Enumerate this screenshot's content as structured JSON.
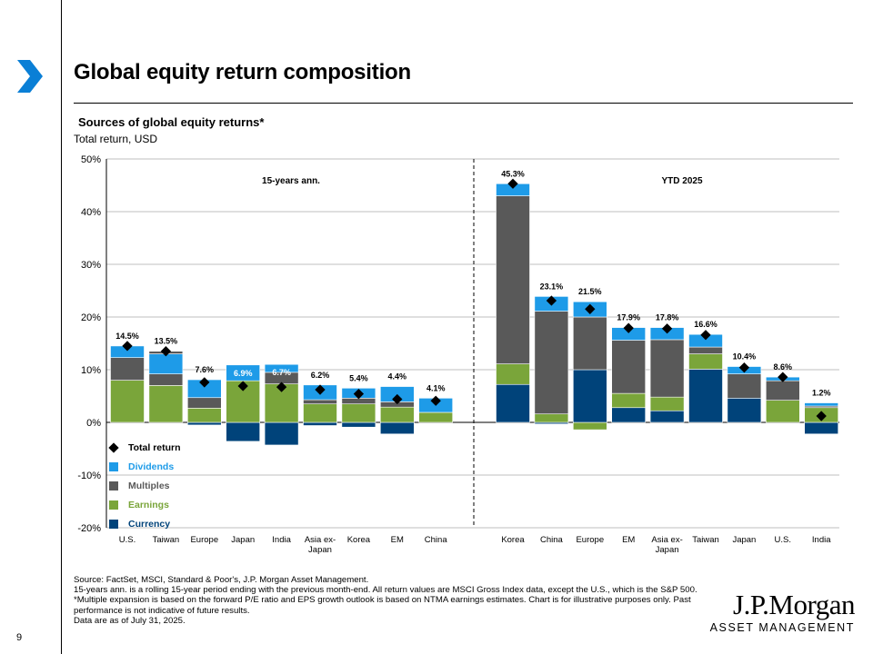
{
  "page": {
    "title": "Global equity return composition",
    "subtitle": "Sources of global equity returns*",
    "subtitle2": "Total return, USD",
    "page_number": "9",
    "footnotes": [
      "Source: FactSet, MSCI, Standard & Poor's, J.P. Morgan Asset Management.",
      "15-years ann. is a rolling 15-year period ending with the previous month-end. All return values are MSCI Gross Index data, except the U.S., which is the S&P 500. *Multiple expansion is based on the forward P/E ratio and EPS growth outlook is based on NTMA earnings estimates. Chart is for illustrative purposes only. Past performance is not indicative of future results.",
      "Data are as of July 31, 2025."
    ],
    "logo_name": "J.P.Morgan",
    "logo_sub": "ASSET MANAGEMENT"
  },
  "colors": {
    "dividends": "#1e9be8",
    "multiples": "#595959",
    "earnings": "#7aa53a",
    "currency": "#00437a",
    "accent": "#0a7fd6"
  },
  "legend": [
    {
      "key": "total",
      "label": "Total return"
    },
    {
      "key": "dividends",
      "label": "Dividends"
    },
    {
      "key": "multiples",
      "label": "Multiples"
    },
    {
      "key": "earnings",
      "label": "Earnings"
    },
    {
      "key": "currency",
      "label": "Currency"
    }
  ],
  "chart_data": {
    "type": "bar",
    "stacked": true,
    "ylim": [
      -20,
      50
    ],
    "yticks": [
      -20,
      -10,
      0,
      10,
      20,
      30,
      40,
      50
    ],
    "ytick_labels": [
      "-20%",
      "-10%",
      "0%",
      "10%",
      "20%",
      "30%",
      "40%",
      "50%"
    ],
    "groups": [
      {
        "label": "15-years ann.",
        "bars": [
          {
            "category": "U.S.",
            "currency": 0.0,
            "earnings": 8.0,
            "multiples": 4.3,
            "dividends": 2.2,
            "total": 14.5,
            "total_label": "14.5%",
            "label_on_bar": false
          },
          {
            "category": "Taiwan",
            "currency": 0.0,
            "earnings": 7.0,
            "multiples": 2.2,
            "dividends": 3.8,
            "extra_multiples": 0.5,
            "total": 13.5,
            "total_label": "13.5%",
            "label_on_bar": false
          },
          {
            "category": "Europe",
            "currency": -0.5,
            "earnings": 2.7,
            "multiples": 2.0,
            "dividends": 3.4,
            "total": 7.6,
            "total_label": "7.6%",
            "label_on_bar": false
          },
          {
            "category": "Japan",
            "currency": -3.6,
            "earnings": 7.9,
            "multiples": 0.0,
            "dividends": 3.0,
            "total": 6.9,
            "total_label": "6.9%",
            "label_on_bar": true
          },
          {
            "category": "India",
            "currency": -4.3,
            "earnings": 7.3,
            "multiples": 2.2,
            "dividends": 1.5,
            "total": 6.7,
            "total_label": "6.7%",
            "label_on_bar": true
          },
          {
            "category": "Asia ex-\nJapan",
            "currency": -0.6,
            "earnings": 3.5,
            "multiples": 0.8,
            "dividends": 2.8,
            "total": 6.2,
            "total_label": "6.2%",
            "label_on_bar": false
          },
          {
            "category": "Korea",
            "currency": -0.9,
            "earnings": 3.5,
            "multiples": 1.1,
            "dividends": 1.9,
            "total": 5.4,
            "total_label": "5.4%",
            "label_on_bar": false
          },
          {
            "category": "EM",
            "currency": -2.2,
            "earnings": 2.9,
            "multiples": 1.0,
            "dividends": 2.9,
            "total": 4.4,
            "total_label": "4.4%",
            "label_on_bar": false
          },
          {
            "category": "China",
            "currency": 0.0,
            "earnings": 1.9,
            "multiples": 0.0,
            "dividends": 2.7,
            "total": 4.1,
            "total_label": "4.1%",
            "label_on_bar": false
          }
        ]
      },
      {
        "label": "YTD 2025",
        "bars": [
          {
            "category": "Korea",
            "currency": 7.2,
            "earnings": 3.9,
            "multiples": 31.9,
            "dividends": 2.3,
            "total": 45.3,
            "total_label": "45.3%",
            "label_on_bar": false
          },
          {
            "category": "China",
            "currency": -0.3,
            "earnings": 1.6,
            "multiples": 19.5,
            "dividends": 2.8,
            "total": 23.1,
            "total_label": "23.1%",
            "label_on_bar": false
          },
          {
            "category": "Europe",
            "currency": 10.0,
            "earnings": -1.4,
            "multiples": 10.0,
            "dividends": 2.9,
            "total": 21.5,
            "total_label": "21.5%",
            "label_on_bar": false
          },
          {
            "category": "EM",
            "currency": 2.8,
            "earnings": 2.7,
            "multiples": 10.1,
            "dividends": 2.4,
            "total": 17.9,
            "total_label": "17.9%",
            "label_on_bar": false
          },
          {
            "category": "Asia ex-\nJapan",
            "currency": 2.2,
            "earnings": 2.6,
            "multiples": 10.9,
            "dividends": 2.3,
            "total": 17.8,
            "total_label": "17.8%",
            "label_on_bar": false
          },
          {
            "category": "Taiwan",
            "currency": 10.1,
            "earnings": 2.9,
            "multiples": 1.3,
            "dividends": 2.4,
            "total": 16.6,
            "total_label": "16.6%",
            "label_on_bar": false
          },
          {
            "category": "Japan",
            "currency": 4.6,
            "earnings": 0.0,
            "multiples": 4.6,
            "dividends": 1.4,
            "total": 10.4,
            "total_label": "10.4%",
            "label_on_bar": false
          },
          {
            "category": "U.S.",
            "currency": 0.0,
            "earnings": 4.2,
            "multiples": 3.7,
            "dividends": 0.7,
            "total": 8.6,
            "total_label": "8.6%",
            "label_on_bar": false
          },
          {
            "category": "India",
            "currency": -2.2,
            "earnings": 2.8,
            "multiples": 0.3,
            "dividends": 0.6,
            "total": 1.2,
            "total_label": "1.2%",
            "label_on_bar": false
          }
        ]
      }
    ]
  }
}
